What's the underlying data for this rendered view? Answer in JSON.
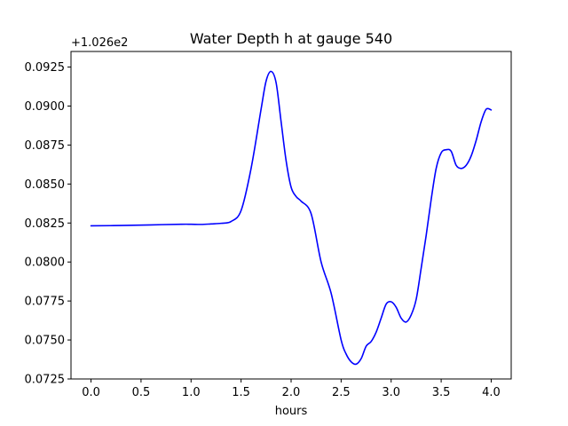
{
  "chart_data": {
    "type": "line",
    "title": "Water Depth h at gauge 540",
    "xlabel": "hours",
    "ylabel": "",
    "y_offset_label": "+1.026e2",
    "xlim": [
      -0.2,
      4.2
    ],
    "ylim": [
      0.0725,
      0.0935
    ],
    "x_ticks": [
      0.0,
      0.5,
      1.0,
      1.5,
      2.0,
      2.5,
      3.0,
      3.5,
      4.0
    ],
    "x_tick_labels": [
      "0.0",
      "0.5",
      "1.0",
      "1.5",
      "2.0",
      "2.5",
      "3.0",
      "3.5",
      "4.0"
    ],
    "y_ticks": [
      0.0725,
      0.075,
      0.0775,
      0.08,
      0.0825,
      0.085,
      0.0875,
      0.09,
      0.0925
    ],
    "y_tick_labels": [
      "0.0725",
      "0.0750",
      "0.0775",
      "0.0800",
      "0.0825",
      "0.0850",
      "0.0875",
      "0.0900",
      "0.0925"
    ],
    "grid": false,
    "series": [
      {
        "color": "#0000ff",
        "x": [
          0.0,
          0.3,
          0.6,
          0.9,
          1.0,
          1.1,
          1.2,
          1.3,
          1.4,
          1.5,
          1.6,
          1.7,
          1.75,
          1.8,
          1.85,
          1.9,
          1.95,
          2.0,
          2.05,
          2.1,
          2.2,
          2.3,
          2.4,
          2.5,
          2.55,
          2.6,
          2.65,
          2.7,
          2.75,
          2.8,
          2.85,
          2.9,
          2.95,
          3.0,
          3.05,
          3.1,
          3.15,
          3.2,
          3.25,
          3.3,
          3.35,
          3.4,
          3.45,
          3.5,
          3.55,
          3.6,
          3.65,
          3.7,
          3.75,
          3.8,
          3.85,
          3.9,
          3.95,
          4.0
        ],
        "y": [
          0.08232,
          0.08234,
          0.08238,
          0.08242,
          0.08242,
          0.08241,
          0.08244,
          0.08248,
          0.0826,
          0.0833,
          0.086,
          0.0898,
          0.0916,
          0.09222,
          0.0915,
          0.089,
          0.0865,
          0.0848,
          0.0842,
          0.0839,
          0.0831,
          0.08,
          0.078,
          0.075,
          0.0741,
          0.0736,
          0.07345,
          0.0738,
          0.0746,
          0.0749,
          0.0755,
          0.0764,
          0.0773,
          0.07745,
          0.0771,
          0.0764,
          0.07615,
          0.0766,
          0.0776,
          0.0796,
          0.0817,
          0.084,
          0.086,
          0.087,
          0.0872,
          0.0871,
          0.0862,
          0.086,
          0.0862,
          0.0868,
          0.0878,
          0.089,
          0.0898,
          0.08975
        ]
      }
    ]
  }
}
